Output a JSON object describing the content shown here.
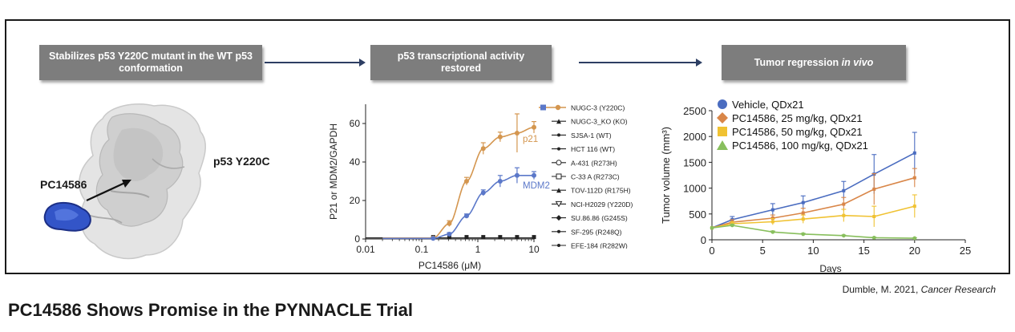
{
  "workflow": {
    "step1": "Stabilizes p53 Y220C mutant in the WT p53 conformation",
    "step2": "p53 transcriptional activity restored",
    "step3_main": "Tumor regression ",
    "step3_em": "in vivo"
  },
  "structure": {
    "protein_label": "p53 Y220C",
    "compound_label": "PC14586"
  },
  "colors": {
    "nugc3": "#d4964f",
    "mdm2": "#5b78c9",
    "vehicle": "#4a6cc0",
    "dose25": "#d98648",
    "dose50": "#f0c232",
    "dose100": "#88bf5d"
  },
  "citation": {
    "author": "Dumble, M. 2021, ",
    "journal": "Cancer Research"
  },
  "footer_title": "PC14586 Shows Promise in the PYNNACLE Trial",
  "chart_data": [
    {
      "type": "line",
      "xscale": "log",
      "xlim": [
        0.01,
        10
      ],
      "ylim": [
        0,
        70
      ],
      "xticks": [
        "0.01",
        "0.1",
        "1",
        "10"
      ],
      "yticks": [
        "0",
        "20",
        "40",
        "60"
      ],
      "xlabel": "PC14586 (μM)",
      "ylabel": "P21 or MDM2/GAPDH",
      "series": [
        {
          "name": "p21",
          "x": [
            0.16,
            0.31,
            0.63,
            1.25,
            2.5,
            5,
            10
          ],
          "y": [
            0.5,
            8,
            30,
            47,
            53,
            55,
            58
          ]
        },
        {
          "name": "MDM2",
          "x": [
            0.16,
            0.31,
            0.63,
            1.25,
            2.5,
            5,
            10
          ],
          "y": [
            0.3,
            2.5,
            12,
            24,
            30,
            33,
            33
          ]
        },
        {
          "name": "NUGC-3_KO (KO)",
          "x": [
            0.16,
            0.31,
            0.63,
            1.25,
            2.5,
            5,
            10
          ],
          "y": [
            1,
            1,
            1,
            1,
            1,
            1,
            1
          ]
        }
      ],
      "legend": [
        "NUGC-3 (Y220C)",
        "NUGC-3_KO (KO)",
        "SJSA-1 (WT)",
        "HCT 116 (WT)",
        "A-431 (R273H)",
        "C-33 A (R273C)",
        "TOV-112D (R175H)",
        "NCI-H2029 (Y220D)",
        "SU.86.86 (G245S)",
        "SF-295 (R248Q)",
        "EFE-184 (R282W)"
      ]
    },
    {
      "type": "line",
      "xlim": [
        0,
        25
      ],
      "ylim": [
        0,
        2500
      ],
      "xticks": [
        "0",
        "5",
        "10",
        "15",
        "20",
        "25"
      ],
      "yticks": [
        "0",
        "500",
        "1000",
        "1500",
        "2000",
        "2500"
      ],
      "xlabel": "Days",
      "ylabel": "Tumor volume (mm³)",
      "series": [
        {
          "name": "Vehicle, QDx21",
          "x": [
            0,
            2,
            6,
            9,
            13,
            16,
            20
          ],
          "y": [
            230,
            390,
            580,
            720,
            950,
            1270,
            1680
          ]
        },
        {
          "name": "PC14586, 25 mg/kg, QDx21",
          "x": [
            0,
            2,
            6,
            9,
            13,
            16,
            20
          ],
          "y": [
            230,
            340,
            420,
            520,
            690,
            980,
            1200
          ]
        },
        {
          "name": "PC14586, 50 mg/kg, QDx21",
          "x": [
            0,
            2,
            6,
            9,
            13,
            16,
            20
          ],
          "y": [
            230,
            310,
            350,
            400,
            470,
            450,
            650
          ]
        },
        {
          "name": "PC14586, 100 mg/kg, QDx21",
          "x": [
            0,
            2,
            6,
            9,
            13,
            16,
            20
          ],
          "y": [
            230,
            280,
            150,
            110,
            80,
            40,
            30
          ]
        }
      ]
    }
  ]
}
